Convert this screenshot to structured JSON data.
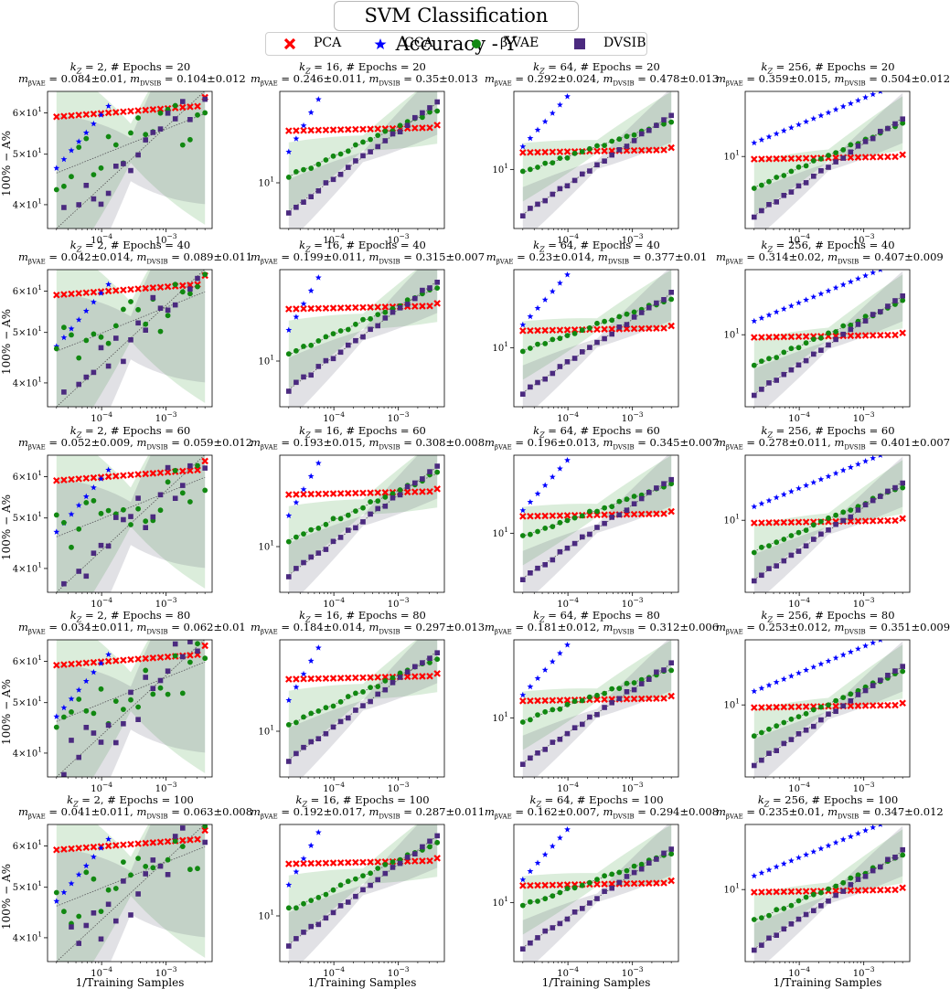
{
  "title": "SVM Classification Accuracy - Y",
  "legend": {
    "pca": "PCA",
    "cca": "CCA",
    "bvae": "β-VAE",
    "dvsib": "DVSIB"
  },
  "colors": {
    "pca": "#ff0000",
    "cca": "#0000ff",
    "bvae": "#118811",
    "dvsib": "#4b2a7f",
    "bvae_band": "rgba(30,140,30,0.16)",
    "dvsib_band": "rgba(90,90,110,0.18)"
  },
  "xlabel": "1/Training Samples",
  "ylabel": "100% − A%",
  "chart_data": {
    "type": "scatter",
    "xscale": "log",
    "yscale": "log",
    "xlim": [
      1.5e-05,
      0.005
    ],
    "xticks": [
      {
        "v": 0.0001,
        "label": "10^-4"
      },
      {
        "v": 0.001,
        "label": "10^-3"
      }
    ],
    "rows": [
      {
        "epochs": 20,
        "panels": [
          {
            "kz": 2,
            "m_bvae": "0.084±0.01",
            "m_dvsib": "0.104±0.012"
          },
          {
            "kz": 16,
            "m_bvae": "0.246±0.011",
            "m_dvsib": "0.35±0.013"
          },
          {
            "kz": 64,
            "m_bvae": "0.292±0.024",
            "m_dvsib": "0.478±0.013"
          },
          {
            "kz": 256,
            "m_bvae": "0.359±0.015",
            "m_dvsib": "0.504±0.012"
          }
        ]
      },
      {
        "epochs": 40,
        "panels": [
          {
            "kz": 2,
            "m_bvae": "0.042±0.014",
            "m_dvsib": "0.089±0.011"
          },
          {
            "kz": 16,
            "m_bvae": "0.199±0.011",
            "m_dvsib": "0.315±0.007"
          },
          {
            "kz": 64,
            "m_bvae": "0.23±0.014",
            "m_dvsib": "0.377±0.01"
          },
          {
            "kz": 256,
            "m_bvae": "0.314±0.02",
            "m_dvsib": "0.407±0.009"
          }
        ]
      },
      {
        "epochs": 60,
        "panels": [
          {
            "kz": 2,
            "m_bvae": "0.052±0.009",
            "m_dvsib": "0.059±0.012"
          },
          {
            "kz": 16,
            "m_bvae": "0.193±0.015",
            "m_dvsib": "0.308±0.008"
          },
          {
            "kz": 64,
            "m_bvae": "0.196±0.013",
            "m_dvsib": "0.345±0.007"
          },
          {
            "kz": 256,
            "m_bvae": "0.278±0.011",
            "m_dvsib": "0.401±0.007"
          }
        ]
      },
      {
        "epochs": 80,
        "panels": [
          {
            "kz": 2,
            "m_bvae": "0.034±0.011",
            "m_dvsib": "0.062±0.01"
          },
          {
            "kz": 16,
            "m_bvae": "0.184±0.014",
            "m_dvsib": "0.297±0.013"
          },
          {
            "kz": 64,
            "m_bvae": "0.181±0.012",
            "m_dvsib": "0.312±0.006"
          },
          {
            "kz": 256,
            "m_bvae": "0.253±0.012",
            "m_dvsib": "0.351±0.009"
          }
        ]
      },
      {
        "epochs": 100,
        "panels": [
          {
            "kz": 2,
            "m_bvae": "0.041±0.011",
            "m_dvsib": "0.063±0.008"
          },
          {
            "kz": 16,
            "m_bvae": "0.192±0.017",
            "m_dvsib": "0.287±0.011"
          },
          {
            "kz": 64,
            "m_bvae": "0.162±0.007",
            "m_dvsib": "0.294±0.008"
          },
          {
            "kz": 256,
            "m_bvae": "0.235±0.01",
            "m_dvsib": "0.347±0.012"
          }
        ]
      }
    ],
    "column_axes": [
      {
        "kz": 2,
        "ylim": [
          36,
          66
        ],
        "yticks": [
          {
            "v": 40,
            "label": "4×10^1"
          },
          {
            "v": 50,
            "label": "5×10^1"
          },
          {
            "v": 60,
            "label": "6×10^1"
          }
        ],
        "pca_level": 59,
        "cca_start": 47,
        "dvsib_start": 36,
        "bvae_start": 46,
        "end": 63
      },
      {
        "kz": 16,
        "ylim": [
          5,
          40
        ],
        "yticks": [
          {
            "v": 10,
            "label": "10^1"
          }
        ],
        "pca_level": 22,
        "cca_start": 16,
        "dvsib_start": 6.5,
        "bvae_start": 11,
        "end": 32
      },
      {
        "kz": 64,
        "ylim": [
          3.5,
          40
        ],
        "yticks": [
          {
            "v": 10,
            "label": "10^1"
          }
        ],
        "pca_level": 13.5,
        "cca_start": 15,
        "dvsib_start": 4.5,
        "bvae_start": 9.5,
        "end": 25
      },
      {
        "kz": 256,
        "ylim": [
          2.5,
          35
        ],
        "yticks": [
          {
            "v": 10,
            "label": "10^1"
          }
        ],
        "pca_level": 9.5,
        "cca_start": 13,
        "dvsib_start": 3.2,
        "bvae_start": 5.5,
        "end": 20
      }
    ]
  }
}
